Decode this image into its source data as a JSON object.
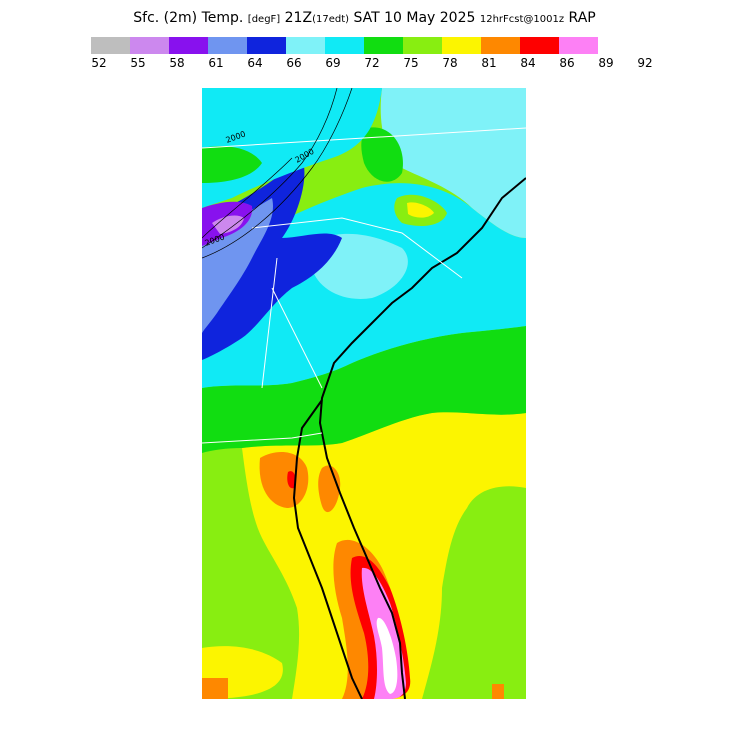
{
  "title": {
    "main": "Sfc. (2m) Temp. ",
    "units": "[degF]",
    "time": " 21Z",
    "local": "(17edt)",
    "date": " SAT 10 May 2025 ",
    "fcst": "12hrFcst@1001z",
    "model": " RAP"
  },
  "legend": {
    "colors": [
      "#bebebe",
      "#cc88ee",
      "#8811ee",
      "#6f95f0",
      "#0f24dd",
      "#7ff2f8",
      "#10eaf5",
      "#11dd11",
      "#88ee11",
      "#fcf500",
      "#fe8800",
      "#fe0000",
      "#fd80f5"
    ],
    "ticks": [
      "52",
      "55",
      "58",
      "61",
      "64",
      "66",
      "69",
      "72",
      "75",
      "78",
      "81",
      "84",
      "86",
      "89",
      "92"
    ]
  },
  "contour_labels": [
    "2000",
    "2000",
    "2000"
  ]
}
